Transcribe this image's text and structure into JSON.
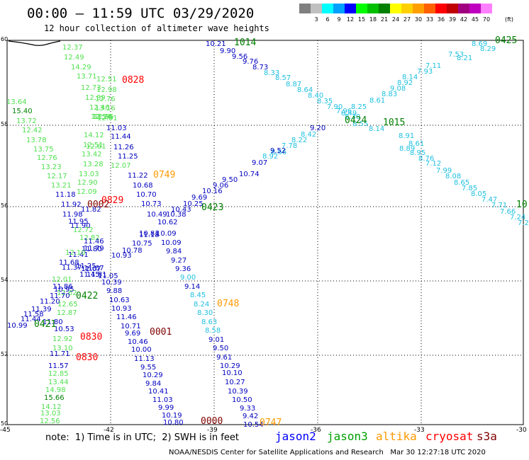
{
  "header": {
    "title": "00:00 – 11:59 UTC 03/29/2020",
    "subtitle": "12 hour collection of altimeter wave heights"
  },
  "color_scale": {
    "unit": "(ft)",
    "bins": [
      {
        "label": "",
        "color": "#808080"
      },
      {
        "label": "3",
        "color": "#c0c0c0"
      },
      {
        "label": "6",
        "color": "#00ffff"
      },
      {
        "label": "9",
        "color": "#00a0ff"
      },
      {
        "label": "12",
        "color": "#0000ff"
      },
      {
        "label": "15",
        "color": "#00ff00"
      },
      {
        "label": "18",
        "color": "#00c000"
      },
      {
        "label": "21",
        "color": "#008000"
      },
      {
        "label": "24",
        "color": "#ffff00"
      },
      {
        "label": "27",
        "color": "#ffd000"
      },
      {
        "label": "30",
        "color": "#ffa000"
      },
      {
        "label": "33",
        "color": "#ff6000"
      },
      {
        "label": "36",
        "color": "#ff0000"
      },
      {
        "label": "39",
        "color": "#c00000"
      },
      {
        "label": "42",
        "color": "#a00080"
      },
      {
        "label": "45",
        "color": "#c000c0"
      },
      {
        "label": "70",
        "color": "#ff80ff"
      }
    ]
  },
  "map": {
    "lon_ticks": [
      "-45",
      "-42",
      "-39",
      "-36",
      "-33",
      "-30"
    ],
    "lat_ticks": [
      "60",
      "58",
      "56",
      "54",
      "52",
      "50"
    ],
    "grid": "dotted",
    "colors": {
      "c": "#20c0e0",
      "b": "#0000c0",
      "g": "#50e050",
      "dg": "#008000",
      "o": "#ff9900",
      "r": "#ff0000",
      "m": "#800000"
    },
    "wave_labels": [
      {
        "t": "10.21",
        "c": "b"
      },
      {
        "t": "9.90",
        "c": "b"
      },
      {
        "t": "9.56",
        "c": "b"
      },
      {
        "t": "9.76",
        "c": "b"
      },
      {
        "t": "8.73",
        "c": "b"
      },
      {
        "t": "8.33",
        "c": "c"
      },
      {
        "t": "8.57",
        "c": "c"
      },
      {
        "t": "8.87",
        "c": "c"
      },
      {
        "t": "8.64",
        "c": "c"
      },
      {
        "t": "8.40",
        "c": "c"
      },
      {
        "t": "8.35",
        "c": "c"
      },
      {
        "t": "7.90",
        "c": "c"
      },
      {
        "t": "7.96",
        "c": "c"
      },
      {
        "t": "8.55",
        "c": "c"
      },
      {
        "t": "8.14",
        "c": "c"
      },
      {
        "t": "8.91",
        "c": "c"
      },
      {
        "t": "8.61",
        "c": "c"
      },
      {
        "t": "8.89",
        "c": "c"
      },
      {
        "t": "8.95",
        "c": "c"
      },
      {
        "t": "8.76",
        "c": "c"
      },
      {
        "t": "7.12",
        "c": "c"
      },
      {
        "t": "7.99",
        "c": "c"
      },
      {
        "t": "8.08",
        "c": "c"
      },
      {
        "t": "8.65",
        "c": "c"
      },
      {
        "t": "7.85",
        "c": "c"
      },
      {
        "t": "8.05",
        "c": "c"
      },
      {
        "t": "7.47",
        "c": "c"
      },
      {
        "t": "7.71",
        "c": "c"
      },
      {
        "t": "7.66",
        "c": "c"
      },
      {
        "t": "7.24",
        "c": "c"
      },
      {
        "t": "7.2",
        "c": "c"
      },
      {
        "t": "8.69",
        "c": "c"
      },
      {
        "t": "8.29",
        "c": "c"
      },
      {
        "t": "7.53",
        "c": "c"
      },
      {
        "t": "8.21",
        "c": "c"
      },
      {
        "t": "7.11",
        "c": "c"
      },
      {
        "t": "7.93",
        "c": "c"
      },
      {
        "t": "8.14",
        "c": "c"
      },
      {
        "t": "8.92",
        "c": "c"
      },
      {
        "t": "9.08",
        "c": "c"
      },
      {
        "t": "8.83",
        "c": "c"
      },
      {
        "t": "8.61",
        "c": "c"
      },
      {
        "t": "8.25",
        "c": "c"
      },
      {
        "t": "8.49",
        "c": "c"
      },
      {
        "t": "8.30",
        "c": "c"
      },
      {
        "t": "9.20",
        "c": "b"
      },
      {
        "t": "8.42",
        "c": "c"
      },
      {
        "t": "8.22",
        "c": "c"
      },
      {
        "t": "7.78",
        "c": "c"
      },
      {
        "t": "8.66",
        "c": "c"
      },
      {
        "t": "9.52",
        "c": "b"
      },
      {
        "t": "8.92",
        "c": "c"
      },
      {
        "t": "9.07",
        "c": "b"
      },
      {
        "t": "10.74",
        "c": "b"
      },
      {
        "t": "9.50",
        "c": "b"
      },
      {
        "t": "9.06",
        "c": "b"
      },
      {
        "t": "10.16",
        "c": "b"
      },
      {
        "t": "9.69",
        "c": "b"
      },
      {
        "t": "10.25",
        "c": "b"
      },
      {
        "t": "10.43",
        "c": "b"
      },
      {
        "t": "10.38",
        "c": "b"
      },
      {
        "t": "10.49",
        "c": "b"
      },
      {
        "t": "10.62",
        "c": "b"
      },
      {
        "t": "10.81",
        "c": "b"
      },
      {
        "t": "11.18",
        "c": "b"
      },
      {
        "t": "10.75",
        "c": "b"
      },
      {
        "t": "10.78",
        "c": "b"
      },
      {
        "t": "10.93",
        "c": "b"
      },
      {
        "t": "11.05",
        "c": "b"
      },
      {
        "t": "11.03",
        "c": "b"
      },
      {
        "t": "11.44",
        "c": "b"
      },
      {
        "t": "11.26",
        "c": "b"
      },
      {
        "t": "11.25",
        "c": "b"
      },
      {
        "t": "11.22",
        "c": "b"
      },
      {
        "t": "10.68",
        "c": "b"
      },
      {
        "t": "10.70",
        "c": "b"
      },
      {
        "t": "10.73",
        "c": "b"
      },
      {
        "t": "10.09",
        "c": "b"
      },
      {
        "t": "10.09",
        "c": "b"
      },
      {
        "t": "9.84",
        "c": "b"
      },
      {
        "t": "9.27",
        "c": "b"
      },
      {
        "t": "9.36",
        "c": "b"
      },
      {
        "t": "9.00",
        "c": "c"
      },
      {
        "t": "9.14",
        "c": "b"
      },
      {
        "t": "8.45",
        "c": "c"
      },
      {
        "t": "8.24",
        "c": "c"
      },
      {
        "t": "8.30",
        "c": "c"
      },
      {
        "t": "8.63",
        "c": "c"
      },
      {
        "t": "8.58",
        "c": "c"
      },
      {
        "t": "9.01",
        "c": "b"
      },
      {
        "t": "9.50",
        "c": "b"
      },
      {
        "t": "9.61",
        "c": "b"
      },
      {
        "t": "10.29",
        "c": "b"
      },
      {
        "t": "10.10",
        "c": "b"
      },
      {
        "t": "10.27",
        "c": "b"
      },
      {
        "t": "10.39",
        "c": "b"
      },
      {
        "t": "10.50",
        "c": "b"
      },
      {
        "t": "9.33",
        "c": "b"
      },
      {
        "t": "9.42",
        "c": "b"
      },
      {
        "t": "10.54",
        "c": "b"
      },
      {
        "t": "10.39",
        "c": "b"
      },
      {
        "t": "9.88",
        "c": "b"
      },
      {
        "t": "10.63",
        "c": "b"
      },
      {
        "t": "10.93",
        "c": "b"
      },
      {
        "t": "11.46",
        "c": "b"
      },
      {
        "t": "10.71",
        "c": "b"
      },
      {
        "t": "9.69",
        "c": "b"
      },
      {
        "t": "10.46",
        "c": "b"
      },
      {
        "t": "10.00",
        "c": "b"
      },
      {
        "t": "11.13",
        "c": "b"
      },
      {
        "t": "9.55",
        "c": "b"
      },
      {
        "t": "10.29",
        "c": "b"
      },
      {
        "t": "9.84",
        "c": "b"
      },
      {
        "t": "10.41",
        "c": "b"
      },
      {
        "t": "11.03",
        "c": "b"
      },
      {
        "t": "9.99",
        "c": "b"
      },
      {
        "t": "10.19",
        "c": "b"
      },
      {
        "t": "10.80",
        "c": "b"
      },
      {
        "t": "12.51",
        "c": "g"
      },
      {
        "t": "12.98",
        "c": "g"
      },
      {
        "t": "12.76",
        "c": "g"
      },
      {
        "t": "13.16",
        "c": "g"
      },
      {
        "t": "12.95",
        "c": "g"
      },
      {
        "t": "12.24",
        "c": "g"
      },
      {
        "t": "12.01",
        "c": "g"
      },
      {
        "t": "12.07",
        "c": "g"
      },
      {
        "t": "12.37",
        "c": "g"
      },
      {
        "t": "12.49",
        "c": "g"
      },
      {
        "t": "14.29",
        "c": "g"
      },
      {
        "t": "13.71",
        "c": "g"
      },
      {
        "t": "12.73",
        "c": "g"
      },
      {
        "t": "12.89",
        "c": "g"
      },
      {
        "t": "12.46",
        "c": "g"
      },
      {
        "t": "12.54",
        "c": "g"
      },
      {
        "t": "14.12",
        "c": "g"
      },
      {
        "t": "12.61",
        "c": "g"
      },
      {
        "t": "12.51",
        "c": "g"
      },
      {
        "t": "13.42",
        "c": "g"
      },
      {
        "t": "13.28",
        "c": "g"
      },
      {
        "t": "13.03",
        "c": "g"
      },
      {
        "t": "12.90",
        "c": "g"
      },
      {
        "t": "12.09",
        "c": "g"
      },
      {
        "t": "13.64",
        "c": "g"
      },
      {
        "t": "15.40",
        "c": "dg"
      },
      {
        "t": "13.72",
        "c": "g"
      },
      {
        "t": "12.42",
        "c": "g"
      },
      {
        "t": "13.78",
        "c": "g"
      },
      {
        "t": "13.75",
        "c": "g"
      },
      {
        "t": "12.76",
        "c": "g"
      },
      {
        "t": "13.23",
        "c": "g"
      },
      {
        "t": "12.17",
        "c": "g"
      },
      {
        "t": "13.21",
        "c": "g"
      },
      {
        "t": "11.18",
        "c": "b"
      },
      {
        "t": "11.92",
        "c": "b"
      },
      {
        "t": "11.82",
        "c": "b"
      },
      {
        "t": "11.98",
        "c": "b"
      },
      {
        "t": "11.95",
        "c": "b"
      },
      {
        "t": "11.90",
        "c": "b"
      },
      {
        "t": "12.72",
        "c": "g"
      },
      {
        "t": "12.82",
        "c": "g"
      },
      {
        "t": "11.46",
        "c": "b"
      },
      {
        "t": "11.79",
        "c": "b"
      },
      {
        "t": "11.80",
        "c": "b"
      },
      {
        "t": "11.41",
        "c": "b"
      },
      {
        "t": "12.10",
        "c": "g"
      },
      {
        "t": "11.68",
        "c": "b"
      },
      {
        "t": "11.37",
        "c": "b"
      },
      {
        "t": "11.45",
        "c": "b"
      },
      {
        "t": "11.25",
        "c": "b"
      },
      {
        "t": "11.67",
        "c": "b"
      },
      {
        "t": "11.81",
        "c": "b"
      },
      {
        "t": "11.07",
        "c": "b"
      },
      {
        "t": "12.01",
        "c": "g"
      },
      {
        "t": "11.86",
        "c": "b"
      },
      {
        "t": "10.95",
        "c": "b"
      },
      {
        "t": "12.62",
        "c": "g"
      },
      {
        "t": "11.70",
        "c": "b"
      },
      {
        "t": "11.20",
        "c": "b"
      },
      {
        "t": "12.65",
        "c": "g"
      },
      {
        "t": "11.39",
        "c": "b"
      },
      {
        "t": "12.87",
        "c": "g"
      },
      {
        "t": "11.58",
        "c": "b"
      },
      {
        "t": "11.44",
        "c": "b"
      },
      {
        "t": "11.80",
        "c": "b"
      },
      {
        "t": "10.99",
        "c": "b"
      },
      {
        "t": "10.53",
        "c": "b"
      },
      {
        "t": "12.92",
        "c": "g"
      },
      {
        "t": "13.10",
        "c": "g"
      },
      {
        "t": "11.71",
        "c": "b"
      },
      {
        "t": "11.57",
        "c": "b"
      },
      {
        "t": "12.85",
        "c": "g"
      },
      {
        "t": "13.44",
        "c": "g"
      },
      {
        "t": "14.98",
        "c": "g"
      },
      {
        "t": "15.66",
        "c": "dg"
      },
      {
        "t": "14.12",
        "c": "g"
      },
      {
        "t": "13.03",
        "c": "g"
      },
      {
        "t": "12.56",
        "c": "g"
      }
    ],
    "time_labels": [
      {
        "t": "1014",
        "c": "dg"
      },
      {
        "t": "0425",
        "c": "dg"
      },
      {
        "t": "0828",
        "c": "r"
      },
      {
        "t": "1015",
        "c": "dg"
      },
      {
        "t": "0424",
        "c": "dg"
      },
      {
        "t": "10",
        "c": "dg"
      },
      {
        "t": "0749",
        "c": "o"
      },
      {
        "t": "0829",
        "c": "r"
      },
      {
        "t": "0002",
        "c": "m"
      },
      {
        "t": "0423",
        "c": "dg"
      },
      {
        "t": "0422",
        "c": "dg"
      },
      {
        "t": "0748",
        "c": "o"
      },
      {
        "t": "0421",
        "c": "dg"
      },
      {
        "t": "0830",
        "c": "r"
      },
      {
        "t": "0001",
        "c": "m"
      },
      {
        "t": "0830",
        "c": "r"
      },
      {
        "t": "0000",
        "c": "m"
      },
      {
        "t": "0747",
        "c": "o"
      }
    ]
  },
  "footer": {
    "note": "note:  1) Time is in UTC;  2) SWH is in feet",
    "satellites": [
      {
        "name": "jason2",
        "color": "#0000ff"
      },
      {
        "name": "jason3",
        "color": "#00a000"
      },
      {
        "name": "altika",
        "color": "#ff9900"
      },
      {
        "name": "cryosat",
        "color": "#ff0000"
      },
      {
        "name": "s3a",
        "color": "#800000"
      }
    ],
    "credit": "NOAA/NESDIS Center for Satellite Applications and Research   Mar 30 12:27:18 UTC 2020"
  }
}
